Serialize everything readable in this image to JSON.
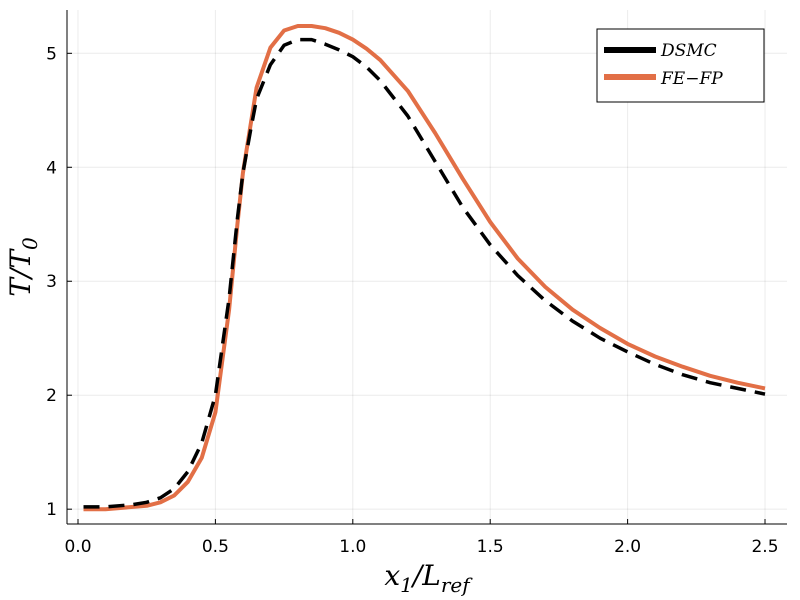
{
  "chart_data": {
    "type": "line",
    "xlabel": "x_1/L_ref",
    "xlabel_parts": {
      "main": "x",
      "sub1": "1",
      "mid": "/L",
      "sub2": "ref"
    },
    "ylabel": "T/T_0",
    "ylabel_parts": {
      "main": "T/T",
      "sub": "0"
    },
    "xlim": [
      -0.04,
      2.58
    ],
    "ylim": [
      0.87,
      5.38
    ],
    "xticks": [
      0.0,
      0.5,
      1.0,
      1.5,
      2.0,
      2.5
    ],
    "xtick_labels": [
      "0.0",
      "0.5",
      "1.0",
      "1.5",
      "2.0",
      "2.5"
    ],
    "yticks": [
      1,
      2,
      3,
      4,
      5
    ],
    "ytick_labels": [
      "1",
      "2",
      "3",
      "4",
      "5"
    ],
    "grid": true,
    "legend_position": "top-right",
    "series": [
      {
        "name": "DSMC",
        "color": "#000000",
        "style": "dashed",
        "x": [
          0.02,
          0.1,
          0.2,
          0.25,
          0.3,
          0.35,
          0.4,
          0.45,
          0.5,
          0.55,
          0.58,
          0.6,
          0.63,
          0.65,
          0.7,
          0.75,
          0.8,
          0.85,
          0.9,
          0.95,
          1.0,
          1.05,
          1.1,
          1.2,
          1.3,
          1.4,
          1.5,
          1.6,
          1.7,
          1.8,
          1.9,
          2.0,
          2.1,
          2.2,
          2.3,
          2.4,
          2.5
        ],
        "y": [
          1.02,
          1.02,
          1.04,
          1.06,
          1.1,
          1.18,
          1.33,
          1.58,
          2.0,
          2.85,
          3.55,
          3.95,
          4.35,
          4.6,
          4.9,
          5.07,
          5.12,
          5.12,
          5.08,
          5.03,
          4.97,
          4.88,
          4.76,
          4.45,
          4.05,
          3.65,
          3.32,
          3.05,
          2.83,
          2.65,
          2.5,
          2.38,
          2.27,
          2.18,
          2.11,
          2.06,
          2.01
        ]
      },
      {
        "name": "FE-FP",
        "color": "#e26f46",
        "style": "solid",
        "x": [
          0.02,
          0.1,
          0.2,
          0.25,
          0.3,
          0.35,
          0.4,
          0.45,
          0.5,
          0.55,
          0.58,
          0.6,
          0.63,
          0.65,
          0.7,
          0.75,
          0.8,
          0.85,
          0.9,
          0.95,
          1.0,
          1.05,
          1.1,
          1.2,
          1.3,
          1.4,
          1.5,
          1.6,
          1.7,
          1.8,
          1.9,
          2.0,
          2.1,
          2.2,
          2.3,
          2.4,
          2.5
        ],
        "y": [
          1.0,
          1.0,
          1.02,
          1.03,
          1.06,
          1.12,
          1.24,
          1.45,
          1.85,
          2.75,
          3.5,
          3.95,
          4.4,
          4.7,
          5.05,
          5.2,
          5.24,
          5.24,
          5.22,
          5.18,
          5.12,
          5.04,
          4.94,
          4.67,
          4.3,
          3.9,
          3.52,
          3.2,
          2.95,
          2.75,
          2.59,
          2.45,
          2.34,
          2.25,
          2.17,
          2.11,
          2.06
        ]
      }
    ],
    "legend": {
      "entries": [
        "DSMC",
        "FE−FP"
      ]
    }
  }
}
